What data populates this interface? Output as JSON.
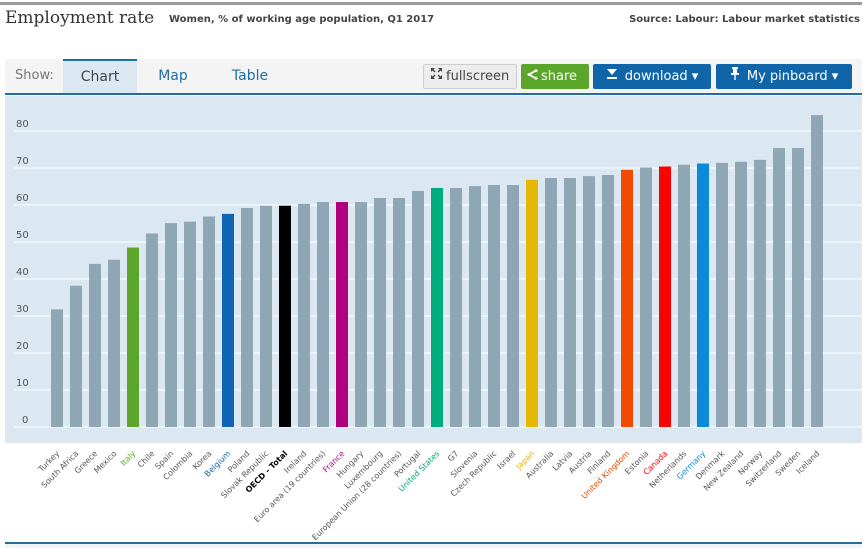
{
  "header": {
    "title": "Employment rate",
    "subtitle": "Women, % of working age population, Q1 2017",
    "source": "Source: Labour: Labour market statistics"
  },
  "toolbar": {
    "show_label": "Show:",
    "tabs": [
      {
        "label": "Chart",
        "active": true
      },
      {
        "label": "Map",
        "active": false
      },
      {
        "label": "Table",
        "active": false
      }
    ],
    "fullscreen_label": "fullscreen",
    "share_label": "share",
    "download_label": "download ▾",
    "pinboard_label": "My pinboard ▾",
    "icons": {
      "fullscreen": "expand-arrows-icon",
      "share": "share-icon",
      "download": "download-icon",
      "pinboard": "pin-icon"
    }
  },
  "colors": {
    "default_bar": "#8fa6b5",
    "grid": "#ffffff",
    "background": "#dbe8f1",
    "tick_text": "#555555",
    "accent": "#1e6fa8"
  },
  "chart_data": {
    "type": "bar",
    "title": "Employment rate",
    "subtitle": "Women, % of working age population, Q1 2017",
    "xlabel": "",
    "ylabel": "",
    "ylim": [
      0,
      85
    ],
    "yticks": [
      0,
      10,
      20,
      30,
      40,
      50,
      60,
      70,
      80
    ],
    "grid": true,
    "legend": "none",
    "categories": [
      "Turkey",
      "South Africa",
      "Greece",
      "Mexico",
      "Italy",
      "Chile",
      "Spain",
      "Colombia",
      "Korea",
      "Belgium",
      "Poland",
      "Slovak Republic",
      "OECD - Total",
      "Ireland",
      "Euro area (19 countries)",
      "France",
      "Hungary",
      "Luxembourg",
      "European Union (28 countries)",
      "Portugal",
      "United States",
      "G7",
      "Slovenia",
      "Czech Republic",
      "Israel",
      "Japan",
      "Australia",
      "Latvia",
      "Austria",
      "Finland",
      "United Kingdom",
      "Estonia",
      "Canada",
      "Netherlands",
      "Germany",
      "Denmark",
      "New Zealand",
      "Norway",
      "Switzerland",
      "Sweden",
      "Iceland"
    ],
    "values": [
      31.8,
      38.2,
      44.1,
      45.2,
      48.5,
      52.3,
      55.1,
      55.5,
      56.9,
      57.6,
      59.2,
      59.8,
      59.8,
      60.3,
      60.8,
      60.8,
      60.8,
      61.9,
      61.9,
      63.8,
      64.6,
      64.6,
      65.1,
      65.4,
      65.4,
      66.8,
      67.3,
      67.3,
      67.8,
      68.1,
      69.5,
      70.1,
      70.4,
      70.9,
      71.2,
      71.4,
      71.7,
      72.2,
      75.4,
      75.4,
      84.3
    ],
    "highlights": {
      "Italy": "#5aa52a",
      "Belgium": "#0f65b4",
      "OECD - Total": "#000000",
      "France": "#b0007f",
      "United States": "#00ad7c",
      "Japan": "#e5b700",
      "United Kingdom": "#f24a00",
      "Canada": "#ff0000",
      "Germany": "#0a8ad9"
    },
    "bold_labels": [
      "OECD - Total"
    ]
  }
}
